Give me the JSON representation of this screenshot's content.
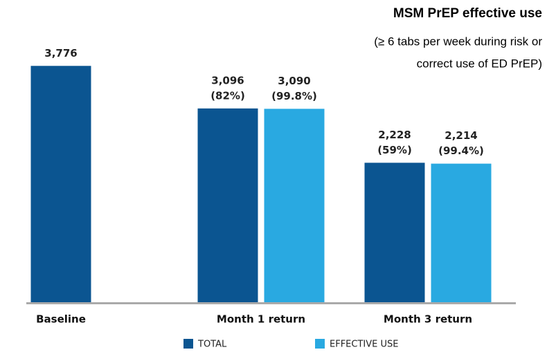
{
  "chart_data": {
    "type": "bar",
    "title": "MSM PrEP effective use",
    "subtitle": [
      "(≥ 6 tabs per week during risk or",
      "correct use of ED PrEP)"
    ],
    "categories": [
      "Baseline",
      "Month 1 return",
      "Month 3 return"
    ],
    "series": [
      {
        "name": "TOTAL",
        "color": "#0b5591",
        "values": [
          3776,
          3096,
          2228
        ],
        "value_labels": [
          [
            "3,776"
          ],
          [
            "3,096",
            "(82%)"
          ],
          [
            "2,228",
            "(59%)"
          ]
        ]
      },
      {
        "name": "EFFECTIVE USE",
        "color": "#29a9e1",
        "values": [
          null,
          3090,
          2214
        ],
        "value_labels": [
          null,
          [
            "3,090",
            "(99.8%)"
          ],
          [
            "2,214",
            "(99.4%)"
          ]
        ]
      }
    ],
    "ylim": [
      0,
      4000
    ]
  }
}
